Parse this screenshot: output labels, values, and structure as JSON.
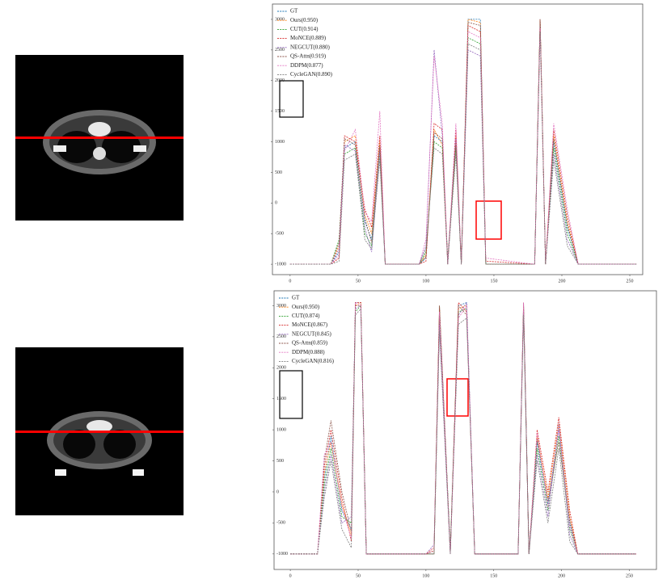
{
  "chart_data": [
    {
      "type": "line",
      "x": [
        0,
        30,
        36,
        40,
        48,
        55,
        60,
        66,
        70,
        95,
        100,
        106,
        112,
        116,
        122,
        126,
        131,
        140,
        144,
        180,
        184,
        188,
        194,
        204,
        212,
        255
      ],
      "xlim": [
        -13,
        259.5
      ],
      "ylim": [
        -1170,
        3250
      ],
      "xticks": [
        0,
        50,
        100,
        150,
        200,
        250
      ],
      "yticks": [
        -1000,
        -500,
        0,
        500,
        1000,
        1500,
        2000,
        2500,
        3000
      ],
      "grid": false,
      "legend": "upper left",
      "series": [
        {
          "name": "GT",
          "color": "#1f77b4",
          "values": [
            -1000,
            -1000,
            -800,
            900,
            1000,
            -300,
            -600,
            900,
            -1000,
            -1000,
            -900,
            1100,
            1000,
            -1000,
            1000,
            -1000,
            3000,
            3000,
            -1000,
            -1000,
            3000,
            -1000,
            1000,
            -400,
            -1000,
            -1000
          ]
        },
        {
          "name": "Ours(0.950)",
          "color": "#ff7f0e",
          "values": [
            -1000,
            -1000,
            -700,
            1000,
            1100,
            -200,
            -500,
            1000,
            -1000,
            -1000,
            -850,
            1200,
            950,
            -1000,
            1100,
            -1000,
            3000,
            2950,
            -1000,
            -1000,
            3000,
            -1000,
            1100,
            -300,
            -1000,
            -1000
          ]
        },
        {
          "name": "CUT(0.914)",
          "color": "#2ca02c",
          "values": [
            -1000,
            -1000,
            -600,
            800,
            900,
            -500,
            -700,
            800,
            -1000,
            -1000,
            -800,
            1000,
            900,
            -900,
            900,
            -1000,
            2700,
            2600,
            -1000,
            -1000,
            2950,
            -1000,
            900,
            -500,
            -1000,
            -1000
          ]
        },
        {
          "name": "MoNCE(0.889)",
          "color": "#d62728",
          "values": [
            -1000,
            -1000,
            -900,
            1100,
            1000,
            -100,
            -400,
            1100,
            -1000,
            -1000,
            -950,
            1300,
            1200,
            -1000,
            1200,
            -1000,
            2900,
            2800,
            -950,
            -1000,
            3000,
            -1000,
            1200,
            -200,
            -1000,
            -1000
          ]
        },
        {
          "name": "NEGCUT(0.880)",
          "color": "#9467bd",
          "values": [
            -1000,
            -1000,
            -750,
            950,
            850,
            -400,
            -800,
            850,
            -1000,
            -1000,
            -700,
            2500,
            1100,
            -1000,
            1050,
            -1000,
            2500,
            2400,
            -1000,
            -1000,
            2900,
            -1000,
            800,
            -600,
            -1000,
            -1000
          ]
        },
        {
          "name": "QS-Attn(0.919)",
          "color": "#8c564b",
          "values": [
            -1000,
            -1000,
            -650,
            1050,
            950,
            -250,
            -650,
            950,
            -1000,
            -1000,
            -880,
            1150,
            1050,
            -950,
            950,
            -1000,
            2950,
            2900,
            -1000,
            -1000,
            3000,
            -1000,
            1050,
            -350,
            -1000,
            -1000
          ]
        },
        {
          "name": "DDPM(0.877)",
          "color": "#e377c2",
          "values": [
            -1000,
            -1000,
            -850,
            850,
            1200,
            -150,
            -300,
            1500,
            -1000,
            -1000,
            -600,
            2400,
            1300,
            -1000,
            1300,
            -1000,
            2800,
            2700,
            -900,
            -1000,
            2850,
            -1000,
            1300,
            -100,
            -1000,
            -1000
          ]
        },
        {
          "name": "CycleGAN(0.890)",
          "color": "#7f7f7f",
          "values": [
            -1000,
            -1000,
            -950,
            700,
            800,
            -600,
            -750,
            700,
            -1000,
            -1000,
            -750,
            900,
            800,
            -1000,
            800,
            -1000,
            2600,
            2500,
            -1000,
            -1000,
            2800,
            -1000,
            700,
            -700,
            -1000,
            -1000
          ]
        }
      ]
    },
    {
      "type": "line",
      "x": [
        0,
        20,
        25,
        30,
        38,
        45,
        48,
        52,
        56,
        100,
        106,
        110,
        118,
        124,
        130,
        136,
        140,
        168,
        172,
        176,
        182,
        190,
        198,
        206,
        212,
        255
      ],
      "xlim": [
        -12,
        270
      ],
      "ylim": [
        -1250,
        3240
      ],
      "xticks": [
        0,
        50,
        100,
        150,
        200,
        250
      ],
      "yticks": [
        -1000,
        -500,
        0,
        500,
        1000,
        1500,
        2000,
        2500,
        3000
      ],
      "grid": false,
      "legend": "upper left",
      "series": [
        {
          "name": "GT",
          "color": "#1f77b4",
          "values": [
            -1000,
            -1000,
            200,
            900,
            -300,
            -600,
            3050,
            3050,
            -1000,
            -1000,
            -950,
            3000,
            -1000,
            3000,
            3050,
            -1000,
            -1000,
            -1000,
            3050,
            -1000,
            800,
            -200,
            1000,
            -500,
            -1000,
            -1000
          ]
        },
        {
          "name": "Ours(0.950)",
          "color": "#ff7f0e",
          "values": [
            -1000,
            -1000,
            300,
            800,
            -200,
            -700,
            3000,
            3050,
            -1000,
            -1000,
            -900,
            3000,
            -1000,
            2950,
            3000,
            -1000,
            -1000,
            -1000,
            3000,
            -1000,
            900,
            -100,
            1100,
            -400,
            -1000,
            -1000
          ]
        },
        {
          "name": "CUT(0.874)",
          "color": "#2ca02c",
          "values": [
            -1000,
            -1000,
            100,
            700,
            -400,
            -500,
            2900,
            3000,
            -1000,
            -1000,
            -1000,
            2800,
            -900,
            2900,
            2950,
            -1000,
            -1000,
            -1000,
            2950,
            -1000,
            700,
            -300,
            900,
            -600,
            -1000,
            -1000
          ]
        },
        {
          "name": "MoNCE(0.867)",
          "color": "#d62728",
          "values": [
            -1000,
            -1000,
            400,
            1000,
            -100,
            -800,
            3050,
            3050,
            -1000,
            -1000,
            -950,
            2950,
            -1000,
            3050,
            2900,
            -1000,
            -1000,
            -1000,
            3050,
            -1000,
            1000,
            0,
            1200,
            -300,
            -1000,
            -1000
          ]
        },
        {
          "name": "NEGCUT(0.845)",
          "color": "#9467bd",
          "values": [
            -1000,
            -1000,
            0,
            600,
            -500,
            -400,
            2950,
            3000,
            -1000,
            -1000,
            -850,
            2700,
            -1000,
            2850,
            3050,
            -1000,
            -1000,
            -1000,
            2900,
            -1000,
            600,
            -400,
            1100,
            -700,
            -1000,
            -1000
          ]
        },
        {
          "name": "QS-Attn(0.859)",
          "color": "#8c564b",
          "values": [
            -1000,
            -1000,
            500,
            1150,
            0,
            -650,
            3000,
            3000,
            -1000,
            -1000,
            -1000,
            3000,
            -950,
            3000,
            2850,
            -1000,
            -1000,
            -1000,
            3000,
            -1000,
            850,
            -150,
            800,
            -450,
            -1000,
            -1000
          ]
        },
        {
          "name": "DDPM(0.888)",
          "color": "#e377c2",
          "values": [
            -1000,
            -1000,
            600,
            800,
            -250,
            -750,
            3050,
            3000,
            -1000,
            -1000,
            -900,
            2900,
            -1000,
            2800,
            3000,
            -1000,
            -1000,
            -1000,
            3050,
            -1000,
            950,
            -250,
            1000,
            -550,
            -1000,
            -1000
          ]
        },
        {
          "name": "CycleGAN(0.816)",
          "color": "#7f7f7f",
          "values": [
            -1000,
            -1000,
            -100,
            500,
            -600,
            -900,
            2850,
            2950,
            -1000,
            -1000,
            -1000,
            2600,
            -1000,
            2700,
            2800,
            -1000,
            -1000,
            -1000,
            2850,
            -1000,
            500,
            -500,
            700,
            -800,
            -1000,
            -1000
          ]
        }
      ]
    }
  ]
}
